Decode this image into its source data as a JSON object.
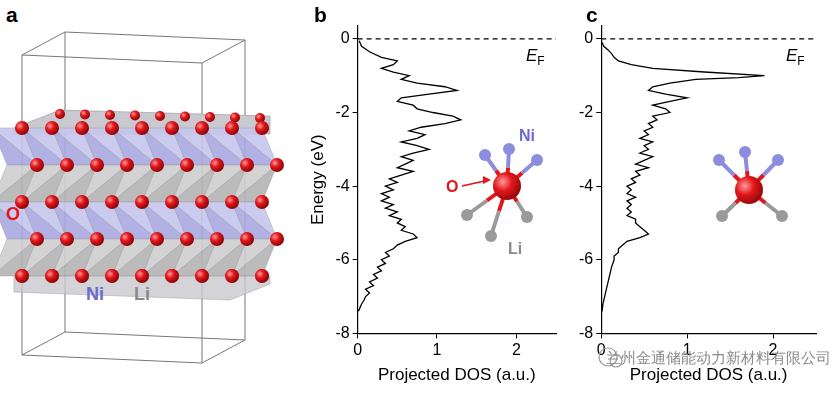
{
  "diagram": {
    "panel": "a",
    "atom_labels": [
      {
        "text": "O",
        "color": "#e3171b"
      },
      {
        "text": "Ni",
        "color": "#6a6ad0"
      },
      {
        "text": "Li",
        "color": "#8a8a8a"
      }
    ]
  },
  "chart_data": [
    {
      "panel": "b",
      "type": "line",
      "orientation": "horizontal",
      "color": "#000000",
      "x_label": "Projected DOS (a.u.)",
      "y_label": "Energy (eV)",
      "xlim": [
        0,
        2.5
      ],
      "xticks": [
        0,
        1,
        2
      ],
      "ylim": [
        -8,
        0.35
      ],
      "yticks": [
        -8,
        -6,
        -4,
        -2,
        0
      ],
      "grid": false,
      "reference_line": {
        "value": 0,
        "line_style": "dashed"
      },
      "annotation": {
        "text": "E",
        "subscript": "F"
      },
      "inset_labels": [
        {
          "text": "Ni",
          "color": "#6a6ad0"
        },
        {
          "text": "O",
          "color": "#e3171b"
        },
        {
          "text": "Li",
          "color": "#8a8a8a"
        }
      ],
      "y": [
        -0.05,
        -0.2,
        -0.35,
        -0.5,
        -0.6,
        -0.7,
        -0.8,
        -0.9,
        -1.0,
        -1.1,
        -1.2,
        -1.3,
        -1.4,
        -1.5,
        -1.6,
        -1.7,
        -1.8,
        -1.9,
        -2.0,
        -2.1,
        -2.2,
        -2.3,
        -2.4,
        -2.5,
        -2.6,
        -2.7,
        -2.8,
        -2.9,
        -3.0,
        -3.1,
        -3.2,
        -3.3,
        -3.4,
        -3.5,
        -3.6,
        -3.7,
        -3.8,
        -3.9,
        -4.0,
        -4.1,
        -4.2,
        -4.3,
        -4.4,
        -4.5,
        -4.6,
        -4.7,
        -4.8,
        -4.9,
        -5.0,
        -5.1,
        -5.2,
        -5.3,
        -5.4,
        -5.5,
        -5.6,
        -5.7,
        -5.8,
        -5.9,
        -6.0,
        -6.1,
        -6.2,
        -6.3,
        -6.4,
        -6.5,
        -6.6,
        -6.7,
        -6.8,
        -6.9,
        -7.0,
        -7.1,
        -7.2,
        -7.3,
        -7.4
      ],
      "values": [
        0.02,
        0.05,
        0.15,
        0.3,
        0.5,
        0.45,
        0.3,
        0.45,
        0.65,
        0.55,
        0.75,
        1.1,
        1.25,
        0.9,
        0.55,
        0.5,
        0.7,
        0.75,
        0.95,
        1.2,
        1.3,
        1.1,
        0.8,
        0.65,
        0.85,
        0.75,
        0.55,
        0.75,
        0.9,
        0.7,
        0.55,
        0.7,
        0.6,
        0.5,
        0.7,
        0.55,
        0.4,
        0.5,
        0.35,
        0.45,
        0.3,
        0.4,
        0.3,
        0.45,
        0.35,
        0.5,
        0.4,
        0.55,
        0.5,
        0.6,
        0.55,
        0.7,
        0.75,
        0.6,
        0.5,
        0.45,
        0.35,
        0.4,
        0.3,
        0.35,
        0.25,
        0.3,
        0.2,
        0.25,
        0.15,
        0.2,
        0.1,
        0.15,
        0.1,
        0.08,
        0.05,
        0.03,
        0.01
      ]
    },
    {
      "panel": "c",
      "type": "line",
      "orientation": "horizontal",
      "color": "#000000",
      "x_label": "Projected DOS (a.u.)",
      "xlim": [
        0,
        2.5
      ],
      "xticks": [
        0,
        1,
        2
      ],
      "ylim": [
        -8,
        0.35
      ],
      "yticks": [
        -8,
        -6,
        -4,
        -2,
        0
      ],
      "grid": false,
      "reference_line": {
        "value": 0,
        "line_style": "dashed"
      },
      "annotation": {
        "text": "E",
        "subscript": "F"
      },
      "y": [
        -0.1,
        -0.2,
        -0.3,
        -0.4,
        -0.5,
        -0.6,
        -0.7,
        -0.8,
        -0.9,
        -1.0,
        -1.05,
        -1.1,
        -1.2,
        -1.3,
        -1.4,
        -1.5,
        -1.6,
        -1.7,
        -1.8,
        -1.9,
        -2.0,
        -2.1,
        -2.2,
        -2.3,
        -2.4,
        -2.5,
        -2.6,
        -2.7,
        -2.8,
        -2.9,
        -3.0,
        -3.1,
        -3.2,
        -3.3,
        -3.4,
        -3.5,
        -3.6,
        -3.7,
        -3.8,
        -3.9,
        -4.0,
        -4.1,
        -4.2,
        -4.3,
        -4.4,
        -4.5,
        -4.6,
        -4.7,
        -4.8,
        -4.9,
        -5.0,
        -5.1,
        -5.2,
        -5.3,
        -5.4,
        -5.5,
        -5.6,
        -5.7,
        -5.8,
        -5.9,
        -6.0,
        -6.2,
        -6.4,
        -6.6,
        -6.8,
        -7.0,
        -7.2,
        -7.4
      ],
      "values": [
        0.01,
        0.03,
        0.08,
        0.12,
        0.15,
        0.2,
        0.35,
        0.6,
        1.2,
        1.9,
        1.6,
        1.1,
        0.8,
        0.6,
        0.55,
        0.75,
        1.0,
        0.8,
        0.6,
        0.75,
        0.8,
        0.6,
        0.65,
        0.55,
        0.6,
        0.5,
        0.55,
        0.45,
        0.6,
        0.5,
        0.55,
        0.45,
        0.6,
        0.5,
        0.4,
        0.55,
        0.4,
        0.45,
        0.35,
        0.4,
        0.3,
        0.35,
        0.3,
        0.4,
        0.3,
        0.35,
        0.3,
        0.35,
        0.3,
        0.4,
        0.4,
        0.45,
        0.5,
        0.55,
        0.45,
        0.3,
        0.25,
        0.2,
        0.2,
        0.15,
        0.15,
        0.12,
        0.1,
        0.08,
        0.06,
        0.04,
        0.02,
        0.01
      ]
    }
  ],
  "watermark": "兰州金通储能动力新材料有限公司"
}
